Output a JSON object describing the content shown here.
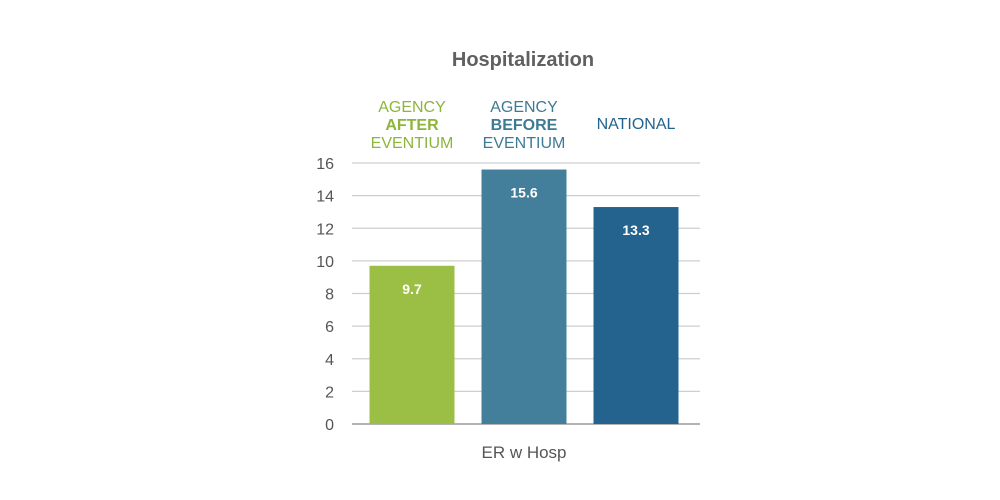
{
  "chart_data": {
    "type": "bar",
    "title": "Hospitalization",
    "categories": [
      "ER w Hosp"
    ],
    "xlabel": "ER w Hosp",
    "ylabel": "",
    "ylim": [
      0,
      16
    ],
    "yticks": [
      0,
      2,
      4,
      6,
      8,
      10,
      12,
      14,
      16
    ],
    "grid": true,
    "legend_position": "top",
    "series": [
      {
        "label_lines": [
          "AGENCY",
          "AFTER",
          "EVENTIUM"
        ],
        "bold_line": 1,
        "value": 9.7,
        "value_label": "9.7",
        "color": "#9bbf45",
        "legend_color": "#8db53b"
      },
      {
        "label_lines": [
          "AGENCY",
          "BEFORE",
          "EVENTIUM"
        ],
        "bold_line": 1,
        "value": 15.6,
        "value_label": "15.6",
        "color": "#437f9a",
        "legend_color": "#3f7a95"
      },
      {
        "label_lines": [
          "NATIONAL"
        ],
        "bold_line": -1,
        "value": 13.3,
        "value_label": "13.3",
        "color": "#23638e",
        "legend_color": "#23638e"
      }
    ]
  }
}
